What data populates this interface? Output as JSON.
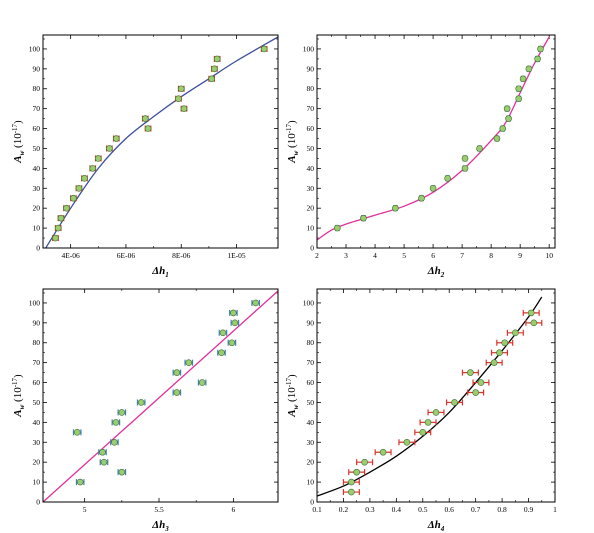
{
  "chart_data": [
    {
      "type": "scatter",
      "ylabel": "A_w (10^-17)",
      "xlabel": "Δh_1",
      "xlim": [
        3e-06,
        1.15e-05
      ],
      "ylim": [
        0,
        107
      ],
      "xticks": [
        4e-06,
        6e-06,
        8e-06,
        1e-05
      ],
      "xtick_labels": [
        "4E-06",
        "6E-06",
        "8E-06",
        "1E-05"
      ],
      "yticks": [
        0,
        10,
        20,
        30,
        40,
        50,
        60,
        70,
        80,
        90,
        100
      ],
      "point_color": "#9acd6f",
      "errorbar_color": "#d9342b",
      "fit_color": "#3b4f9c",
      "points": [
        [
          3.45e-06,
          5
        ],
        [
          3.55e-06,
          10
        ],
        [
          3.65e-06,
          15
        ],
        [
          3.85e-06,
          20
        ],
        [
          4.1e-06,
          25
        ],
        [
          4.3e-06,
          30
        ],
        [
          4.5e-06,
          35
        ],
        [
          4.8e-06,
          40
        ],
        [
          5e-06,
          45
        ],
        [
          5.4e-06,
          50
        ],
        [
          5.65e-06,
          55
        ],
        [
          6.8e-06,
          60
        ],
        [
          6.7e-06,
          65
        ],
        [
          8.1e-06,
          70
        ],
        [
          7.9e-06,
          75
        ],
        [
          8e-06,
          80
        ],
        [
          9.1e-06,
          85
        ],
        [
          9.2e-06,
          90
        ],
        [
          9.3e-06,
          95
        ],
        [
          1.1e-05,
          100
        ]
      ],
      "x_error": 1e-07,
      "fit": [
        [
          3.1e-06,
          0
        ],
        [
          4e-06,
          20
        ],
        [
          5e-06,
          40
        ],
        [
          6e-06,
          55
        ],
        [
          7e-06,
          66
        ],
        [
          8e-06,
          76
        ],
        [
          9e-06,
          85
        ],
        [
          1e-05,
          94
        ],
        [
          1.15e-05,
          106
        ]
      ]
    },
    {
      "type": "scatter",
      "ylabel": "A_w (10^-17)",
      "xlabel": "Δh_2",
      "xlim": [
        2,
        10.2
      ],
      "ylim": [
        0,
        107
      ],
      "xticks": [
        2,
        3,
        4,
        5,
        6,
        7,
        8,
        9,
        10
      ],
      "xtick_labels": [
        "2",
        "3",
        "4",
        "5",
        "6",
        "7",
        "8",
        "9",
        "10"
      ],
      "yticks": [
        0,
        10,
        20,
        30,
        40,
        50,
        60,
        70,
        80,
        90,
        100
      ],
      "point_color": "#9acd6f",
      "errorbar_color": "#3b7fc4",
      "fit_color": "#e0309c",
      "points": [
        [
          2.7,
          10
        ],
        [
          3.6,
          15
        ],
        [
          4.7,
          20
        ],
        [
          5.6,
          25
        ],
        [
          6.0,
          30
        ],
        [
          6.5,
          35
        ],
        [
          7.1,
          40
        ],
        [
          7.1,
          45
        ],
        [
          7.6,
          50
        ],
        [
          8.2,
          55
        ],
        [
          8.4,
          60
        ],
        [
          8.6,
          65
        ],
        [
          8.55,
          70
        ],
        [
          8.95,
          75
        ],
        [
          8.95,
          80
        ],
        [
          9.1,
          85
        ],
        [
          9.3,
          90
        ],
        [
          9.6,
          95
        ],
        [
          9.7,
          100
        ]
      ],
      "x_error": 0.06,
      "fit": [
        [
          2,
          4
        ],
        [
          2.5,
          9
        ],
        [
          3,
          12
        ],
        [
          4,
          16.5
        ],
        [
          5,
          21
        ],
        [
          6,
          28
        ],
        [
          7,
          39
        ],
        [
          8,
          54
        ],
        [
          8.5,
          63
        ],
        [
          9,
          78
        ],
        [
          9.5,
          93
        ],
        [
          10,
          106
        ]
      ]
    },
    {
      "type": "scatter",
      "ylabel": "A_w (10^-17)",
      "xlabel": "Δh_3",
      "xlim": [
        4.72,
        6.3
      ],
      "ylim": [
        0,
        107
      ],
      "xticks": [
        5,
        5.5,
        6
      ],
      "xtick_labels": [
        "5",
        "5.5",
        "6"
      ],
      "yticks": [
        0,
        10,
        20,
        30,
        40,
        50,
        60,
        70,
        80,
        90,
        100
      ],
      "point_color": "#9acd6f",
      "errorbar_color": "#3b7fc4",
      "fit_color": "#e0309c",
      "points": [
        [
          4.95,
          35
        ],
        [
          4.97,
          10
        ],
        [
          5.12,
          25
        ],
        [
          5.13,
          20
        ],
        [
          5.2,
          30
        ],
        [
          5.21,
          40
        ],
        [
          5.25,
          45
        ],
        [
          5.25,
          15
        ],
        [
          5.38,
          50
        ],
        [
          5.62,
          55
        ],
        [
          5.62,
          65
        ],
        [
          5.7,
          70
        ],
        [
          5.79,
          60
        ],
        [
          5.92,
          75
        ],
        [
          5.93,
          85
        ],
        [
          5.99,
          80
        ],
        [
          6.0,
          95
        ],
        [
          6.01,
          90
        ],
        [
          6.15,
          100
        ]
      ],
      "x_error": 0.025,
      "fit": [
        [
          4.72,
          0
        ],
        [
          6.3,
          106
        ]
      ]
    },
    {
      "type": "scatter",
      "ylabel": "A_w (10^-17)",
      "xlabel": "Δh_4",
      "xlim": [
        0.1,
        1.0
      ],
      "ylim": [
        0,
        107
      ],
      "xticks": [
        0.1,
        0.2,
        0.3,
        0.4,
        0.5,
        0.6,
        0.7,
        0.8,
        0.9,
        1.0
      ],
      "xtick_labels": [
        "0.1",
        "0.2",
        "0.3",
        "0.4",
        "0.5",
        "0.6",
        "0.7",
        "0.8",
        "0.9",
        "1"
      ],
      "yticks": [
        0,
        10,
        20,
        30,
        40,
        50,
        60,
        70,
        80,
        90,
        100
      ],
      "point_color": "#9acd6f",
      "errorbar_color": "#d9342b",
      "fit_color": "#000000",
      "points": [
        [
          0.23,
          5
        ],
        [
          0.23,
          10
        ],
        [
          0.25,
          15
        ],
        [
          0.28,
          20
        ],
        [
          0.35,
          25
        ],
        [
          0.44,
          30
        ],
        [
          0.5,
          35
        ],
        [
          0.52,
          40
        ],
        [
          0.55,
          45
        ],
        [
          0.62,
          50
        ],
        [
          0.7,
          55
        ],
        [
          0.72,
          60
        ],
        [
          0.68,
          65
        ],
        [
          0.77,
          70
        ],
        [
          0.79,
          75
        ],
        [
          0.81,
          80
        ],
        [
          0.85,
          85
        ],
        [
          0.92,
          90
        ],
        [
          0.91,
          95
        ]
      ],
      "x_error": 0.03,
      "fit": [
        [
          0.1,
          3
        ],
        [
          0.2,
          8
        ],
        [
          0.3,
          15
        ],
        [
          0.4,
          23
        ],
        [
          0.5,
          33
        ],
        [
          0.6,
          45
        ],
        [
          0.7,
          60
        ],
        [
          0.8,
          76
        ],
        [
          0.9,
          93
        ],
        [
          0.95,
          103
        ]
      ]
    }
  ]
}
